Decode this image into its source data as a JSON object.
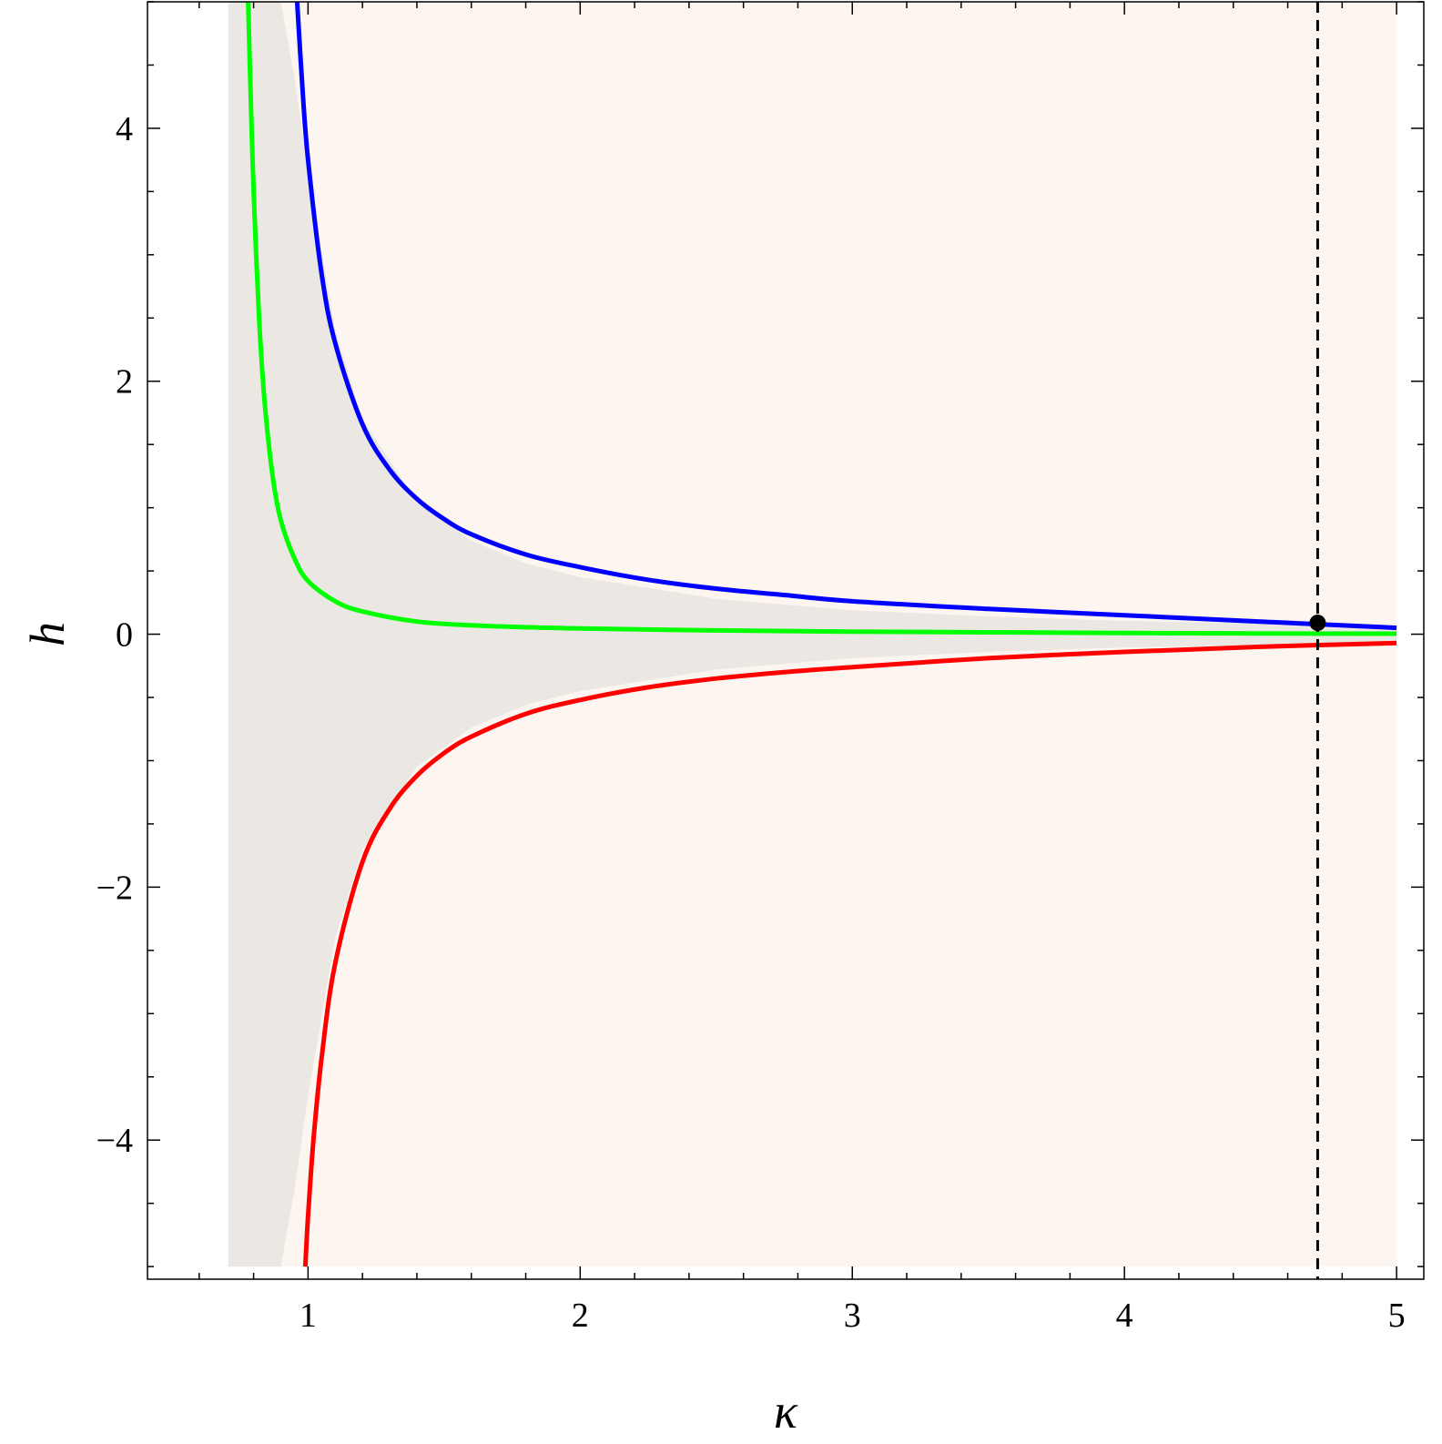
{
  "chart_data": {
    "type": "line",
    "title": "",
    "xlabel": "κ",
    "ylabel": "h",
    "xlim": [
      0.41,
      5.1
    ],
    "ylim": [
      -5.1,
      5.0
    ],
    "x_ticks": [
      1,
      2,
      3,
      4,
      5
    ],
    "y_ticks": [
      -4,
      -2,
      0,
      2,
      4
    ],
    "x_tick_labels": [
      "1",
      "2",
      "3",
      "4",
      "5"
    ],
    "y_tick_labels": [
      "−4",
      "−2",
      "0",
      "2",
      "4"
    ],
    "x_minor_step": 0.2,
    "y_minor_step": 0.5,
    "grid": false,
    "frame": true,
    "plot_range": {
      "x": [
        0.7071,
        5.0
      ],
      "y": [
        -5.0,
        5.0
      ]
    },
    "colors": {
      "background_region": "#fdf5f0",
      "shaded_region": "#ebe7e2",
      "blue": "#0000ff",
      "green": "#00ff00",
      "red": "#ff0000",
      "reference_line": "#000000"
    },
    "regions": [
      {
        "id": "outer",
        "color": "#fdf5f0",
        "description": "rectangle over the plot range"
      },
      {
        "id": "inner",
        "color": "#ebe7e2",
        "boundary_upper": [
          [
            0.7071,
            5.0
          ],
          [
            0.9,
            5.0
          ],
          [
            0.95,
            4.4
          ],
          [
            1.0,
            3.65
          ],
          [
            1.1,
            2.4
          ],
          [
            1.2,
            1.7
          ],
          [
            1.4,
            1.05
          ],
          [
            1.6,
            0.74
          ],
          [
            1.8,
            0.56
          ],
          [
            2.0,
            0.45
          ],
          [
            2.5,
            0.28
          ],
          [
            3.0,
            0.19
          ],
          [
            3.5,
            0.14
          ],
          [
            4.0,
            0.105
          ],
          [
            4.5,
            0.085
          ],
          [
            5.0,
            0.07
          ]
        ],
        "boundary_lower": [
          [
            0.7071,
            -5.0
          ],
          [
            0.9,
            -5.0
          ],
          [
            0.95,
            -4.4
          ],
          [
            1.0,
            -3.65
          ],
          [
            1.1,
            -2.4
          ],
          [
            1.2,
            -1.7
          ],
          [
            1.4,
            -1.05
          ],
          [
            1.6,
            -0.74
          ],
          [
            1.8,
            -0.56
          ],
          [
            2.0,
            -0.45
          ],
          [
            2.5,
            -0.28
          ],
          [
            3.0,
            -0.19
          ],
          [
            3.5,
            -0.14
          ],
          [
            4.0,
            -0.105
          ],
          [
            4.5,
            -0.085
          ],
          [
            5.0,
            -0.07
          ]
        ]
      }
    ],
    "series": [
      {
        "color": "#0000ff",
        "x": [
          0.96,
          0.98,
          1.0,
          1.05,
          1.1,
          1.2,
          1.3,
          1.4,
          1.5,
          1.6,
          1.8,
          2.0,
          2.25,
          2.5,
          2.75,
          3.0,
          3.5,
          4.0,
          4.5,
          5.0
        ],
        "y": [
          5.0,
          4.3,
          3.75,
          2.85,
          2.3,
          1.66,
          1.3,
          1.07,
          0.91,
          0.79,
          0.63,
          0.53,
          0.43,
          0.36,
          0.31,
          0.26,
          0.2,
          0.15,
          0.1,
          0.05
        ]
      },
      {
        "color": "#00ff00",
        "x": [
          0.78,
          0.79,
          0.8,
          0.82,
          0.84,
          0.87,
          0.9,
          0.95,
          1.0,
          1.1,
          1.2,
          1.4,
          1.6,
          1.8,
          2.0,
          2.5,
          3.0,
          3.5,
          4.0,
          4.5,
          5.0
        ],
        "y": [
          5.0,
          4.2,
          3.5,
          2.5,
          1.85,
          1.25,
          0.9,
          0.6,
          0.42,
          0.26,
          0.18,
          0.1,
          0.07,
          0.055,
          0.045,
          0.03,
          0.02,
          0.015,
          0.01,
          0.006,
          0.004
        ]
      },
      {
        "color": "#ff0000",
        "x": [
          0.99,
          1.0,
          1.02,
          1.05,
          1.1,
          1.2,
          1.3,
          1.4,
          1.5,
          1.6,
          1.8,
          2.0,
          2.25,
          2.5,
          2.75,
          3.0,
          3.5,
          4.0,
          4.5,
          5.0
        ],
        "y": [
          -5.0,
          -4.6,
          -4.0,
          -3.35,
          -2.6,
          -1.8,
          -1.38,
          -1.12,
          -0.94,
          -0.81,
          -0.63,
          -0.52,
          -0.42,
          -0.35,
          -0.3,
          -0.26,
          -0.19,
          -0.14,
          -0.1,
          -0.07
        ]
      }
    ],
    "reference_line": {
      "x": 4.71,
      "style": "dashed",
      "color": "#000000"
    },
    "marker": {
      "x": 4.71,
      "y": 0.09,
      "color": "#000000"
    }
  }
}
